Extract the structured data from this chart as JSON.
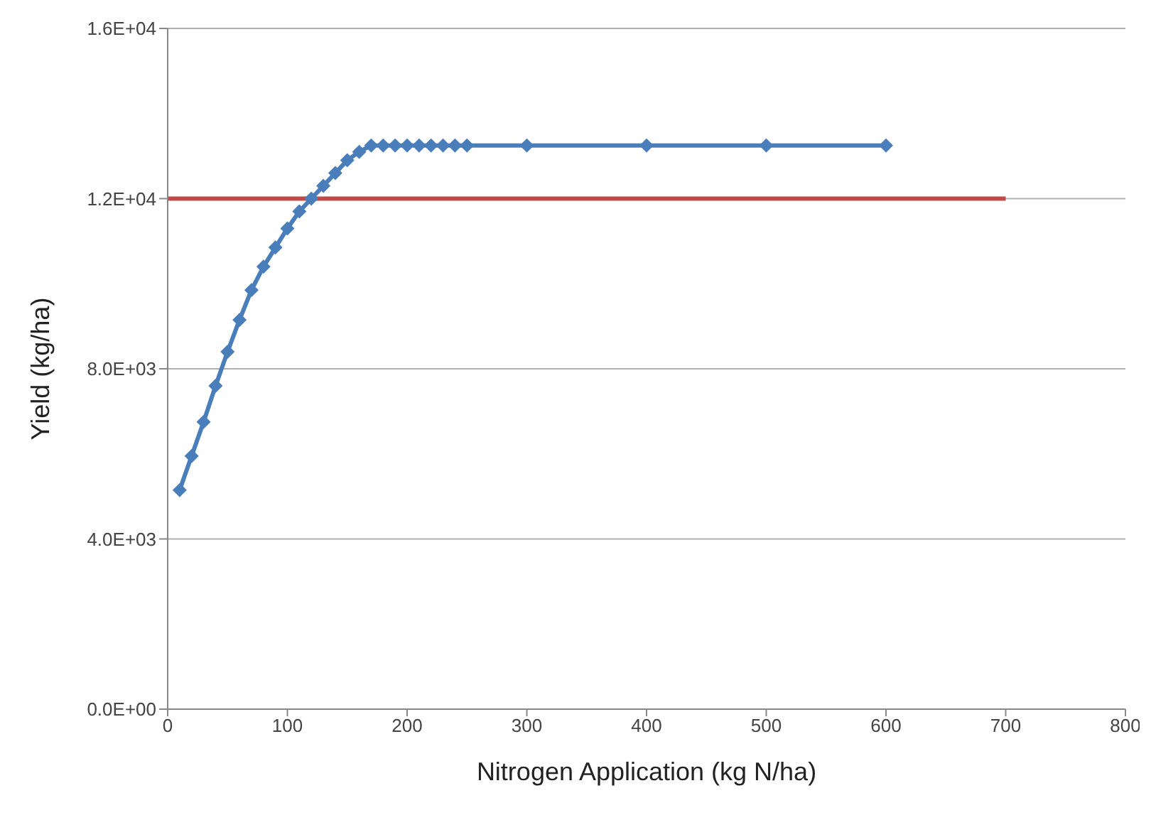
{
  "chart_data": {
    "type": "line",
    "xlabel": "Nitrogen Application (kg N/ha)",
    "ylabel": "Yield (kg/ha)",
    "xlim": [
      0,
      800
    ],
    "xticks": [
      0,
      100,
      200,
      300,
      400,
      500,
      600,
      700,
      800
    ],
    "ylim": [
      0,
      16000
    ],
    "yticks": [
      {
        "value": 0,
        "label": "0.0E+00"
      },
      {
        "value": 4000,
        "label": "4.0E+03"
      },
      {
        "value": 8000,
        "label": "8.0E+03"
      },
      {
        "value": 12000,
        "label": "1.2E+04"
      },
      {
        "value": 16000,
        "label": "1.6E+04"
      }
    ],
    "grid": "y",
    "marker": "diamond",
    "line_style": "solid",
    "series": [
      {
        "color": "#4a7ebb",
        "x": [
          10,
          20,
          30,
          40,
          50,
          60,
          70,
          80,
          90,
          100,
          110,
          120,
          130,
          140,
          150,
          160,
          170,
          180,
          190,
          200,
          210,
          220,
          230,
          240,
          250,
          300,
          400,
          500,
          600
        ],
        "values": [
          5150,
          5950,
          6750,
          7600,
          8400,
          9150,
          9850,
          10400,
          10850,
          11300,
          11700,
          12000,
          12300,
          12600,
          12900,
          13100,
          13250,
          13250,
          13250,
          13250,
          13250,
          13250,
          13250,
          13250,
          13250,
          13250,
          13250,
          13250,
          13250
        ]
      },
      {
        "color": "#be4b48",
        "marker": "none",
        "x": [
          0,
          700
        ],
        "values": [
          12000,
          12000
        ]
      }
    ]
  }
}
